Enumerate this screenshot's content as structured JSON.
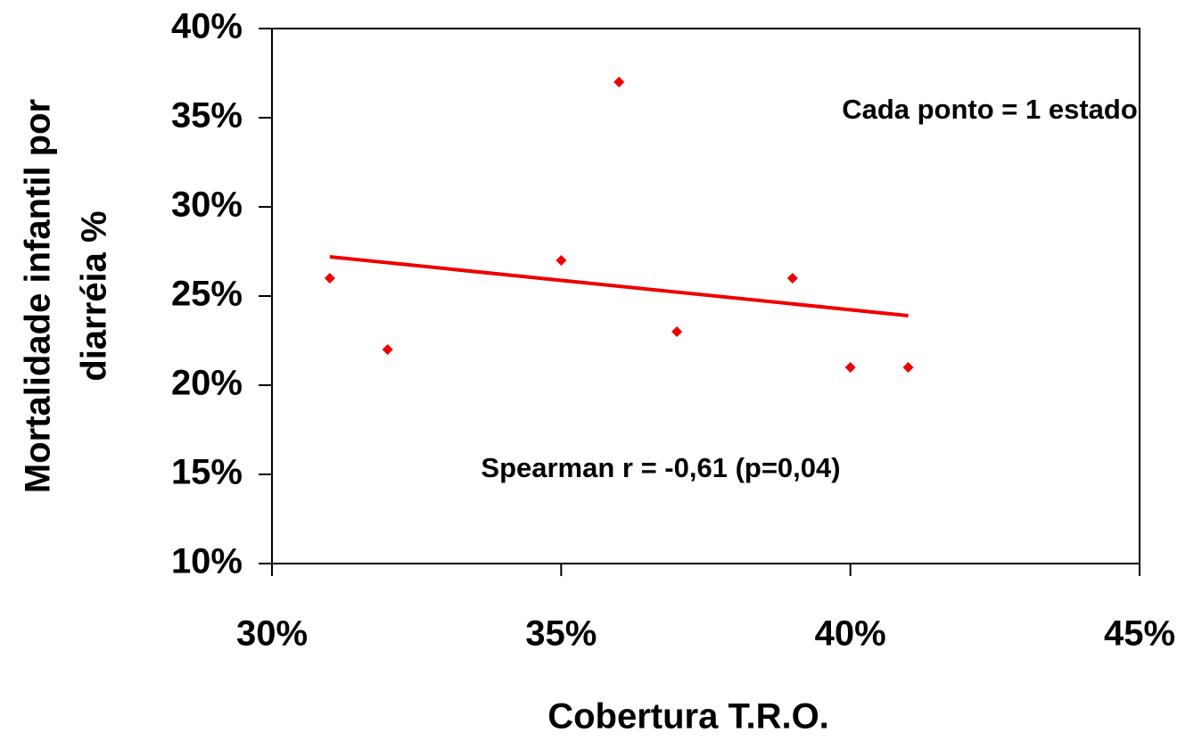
{
  "chart_data": {
    "type": "scatter",
    "x_label": "Cobertura T.R.O.",
    "y_label": [
      "Mortalidade infantil por",
      "diarréia %"
    ],
    "annotations": [
      "Cada ponto = 1 estado",
      "Spearman r = -0,61 (p=0,04)"
    ],
    "series": [
      {
        "color": "#ee0000",
        "x": [
          31,
          32,
          35,
          36,
          37,
          39,
          40,
          41
        ],
        "values": [
          26,
          22,
          27,
          37,
          23,
          26,
          21,
          21
        ]
      }
    ],
    "trendline": {
      "color": "#ee0000",
      "x": [
        31,
        41
      ],
      "values": [
        27.2,
        23.9
      ]
    },
    "xlim": [
      30,
      45
    ],
    "ylim": [
      10,
      40
    ],
    "xticks": [
      {
        "value": 30,
        "label": "30%"
      },
      {
        "value": 35,
        "label": "35%"
      },
      {
        "value": 40,
        "label": "40%"
      },
      {
        "value": 45,
        "label": "45%"
      }
    ],
    "yticks": [
      {
        "value": 10,
        "label": "10%"
      },
      {
        "value": 15,
        "label": "15%"
      },
      {
        "value": 20,
        "label": "20%"
      },
      {
        "value": 25,
        "label": "25%"
      },
      {
        "value": 30,
        "label": "30%"
      },
      {
        "value": 35,
        "label": "35%"
      },
      {
        "value": 40,
        "label": "40%"
      }
    ]
  }
}
